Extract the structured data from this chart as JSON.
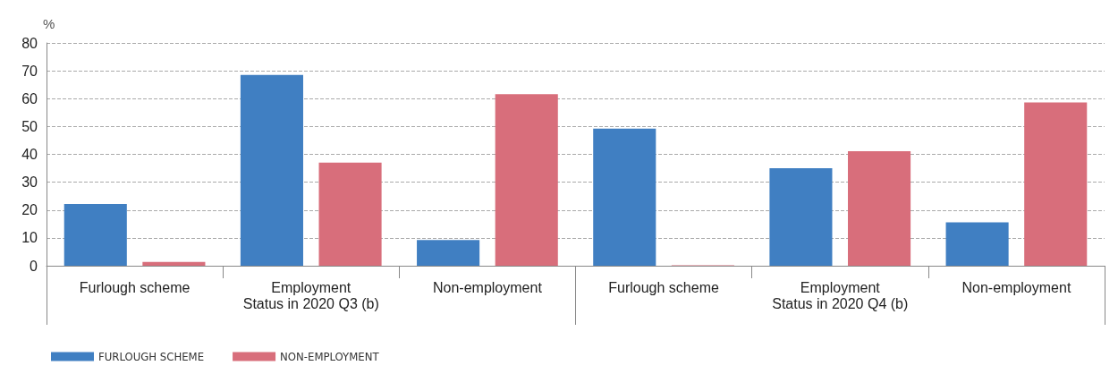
{
  "chart_data": {
    "type": "bar",
    "ylabel": "%",
    "categories": [
      "Furlough scheme",
      "Employment",
      "Non-employment",
      "Furlough scheme",
      "Employment",
      "Non-employment"
    ],
    "series": [
      {
        "name": "FURLOUGH SCHEME",
        "color": "#407fc2",
        "values": [
          22.2,
          68.5,
          9.2,
          49.2,
          35.0,
          15.6
        ]
      },
      {
        "name": "NON-EMPLOYMENT",
        "color": "#d86e7b",
        "values": [
          1.4,
          37.0,
          61.6,
          0.2,
          41.1,
          58.6
        ]
      }
    ],
    "annotations": [
      "Status in 2020 Q3 (b)",
      "Status in 2020 Q4 (b)"
    ],
    "ylim": [
      0,
      80
    ],
    "yticks": [
      0,
      10,
      20,
      30,
      40,
      50,
      60,
      70,
      80
    ],
    "grid": "y",
    "legend": "bottom left"
  }
}
